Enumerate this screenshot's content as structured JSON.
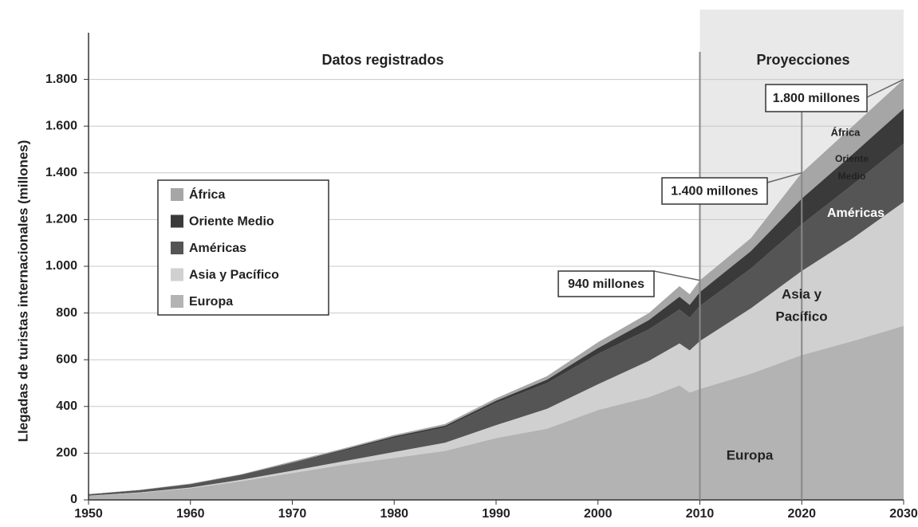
{
  "chart_data": {
    "type": "stacked-area",
    "y_label": "Llegadas de turistas internacionales (millones)",
    "x": [
      1950,
      1955,
      1960,
      1965,
      1970,
      1975,
      1980,
      1985,
      1990,
      1995,
      2000,
      2005,
      2008,
      2009,
      2010,
      2015,
      2020,
      2025,
      2030
    ],
    "series": [
      {
        "name": "Europa",
        "color": "#b3b3b3",
        "values": [
          17,
          30,
          50,
          80,
          115,
          150,
          180,
          210,
          265,
          305,
          385,
          440,
          490,
          460,
          475,
          540,
          620,
          680,
          745
        ]
      },
      {
        "name": "Asia y Pacífico",
        "color": "#d0d0d0",
        "values": [
          1,
          2,
          3,
          6,
          10,
          15,
          25,
          35,
          55,
          85,
          110,
          155,
          180,
          180,
          205,
          280,
          360,
          440,
          530
        ]
      },
      {
        "name": "Américas",
        "color": "#555555",
        "values": [
          6,
          10,
          14,
          20,
          33,
          45,
          60,
          65,
          95,
          110,
          130,
          135,
          145,
          140,
          150,
          170,
          200,
          230,
          250
        ]
      },
      {
        "name": "Oriente Medio",
        "color": "#3a3a3a",
        "values": [
          0,
          0,
          1,
          2,
          2,
          5,
          7,
          8,
          10,
          15,
          25,
          40,
          55,
          55,
          60,
          75,
          110,
          130,
          150
        ]
      },
      {
        "name": "África",
        "color": "#a6a6a6",
        "values": [
          1,
          1,
          2,
          2,
          5,
          5,
          6,
          7,
          10,
          15,
          25,
          30,
          45,
          45,
          50,
          55,
          110,
          120,
          125
        ]
      }
    ],
    "area_labels": [
      [
        "Europa"
      ],
      [
        "Asia y",
        "Pacífico"
      ],
      [
        "Américas"
      ],
      [
        "Oriente",
        "Medio"
      ],
      [
        "África"
      ]
    ],
    "xlim": [
      1950,
      2030
    ],
    "xticks": [
      1950,
      1960,
      1970,
      1980,
      1990,
      2000,
      2010,
      2020,
      2030
    ],
    "ylim": [
      0,
      2000
    ],
    "yticks": [
      0,
      200,
      400,
      600,
      800,
      {
        "value": 1000,
        "label": "1.000"
      },
      {
        "value": 1200,
        "label": "1.200"
      },
      {
        "value": 1400,
        "label": "1.400"
      },
      {
        "value": 1600,
        "label": "1.600"
      },
      {
        "value": 1800,
        "label": "1.800"
      }
    ],
    "grid": true,
    "period_labels": [
      "Datos registrados",
      "Proyecciones"
    ],
    "projection_start": 2010,
    "vlines": [
      2010,
      2020
    ],
    "annotations": [
      {
        "text": "940 millones",
        "x": 2010,
        "value": 940
      },
      {
        "text": "1.400 millones",
        "x": 2020,
        "value": 1400
      },
      {
        "text": "1.800 millones",
        "x": 2030,
        "value": 1800
      }
    ]
  }
}
